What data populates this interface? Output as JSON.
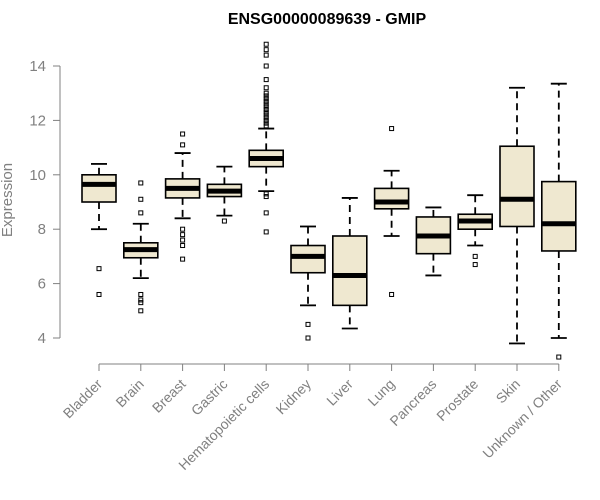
{
  "chart_data": {
    "type": "box",
    "title": "ENSG00000089639 - GMIP",
    "xlabel": "",
    "ylabel": "Expression",
    "ylim": [
      3.0,
      15.0
    ],
    "yticks": [
      4,
      6,
      8,
      10,
      12,
      14
    ],
    "colors": {
      "box_fill": "#efe8d0",
      "stroke": "#000000",
      "axis": "#808080",
      "label": "#808080",
      "title": "#000000"
    },
    "categories": [
      "Bladder",
      "Brain",
      "Breast",
      "Gastric",
      "Hematopoietic cells",
      "Kidney",
      "Liver",
      "Lung",
      "Pancreas",
      "Prostate",
      "Skin",
      "Unknown / Other"
    ],
    "boxes": [
      {
        "name": "Bladder",
        "whisker_low": 8.0,
        "q1": 9.0,
        "median": 9.65,
        "q3": 10.0,
        "whisker_high": 10.4,
        "outliers": [
          6.55,
          5.6
        ]
      },
      {
        "name": "Brain",
        "whisker_low": 6.2,
        "q1": 6.95,
        "median": 7.25,
        "q3": 7.5,
        "whisker_high": 8.2,
        "outliers": [
          9.7,
          9.1,
          8.6,
          5.6,
          5.4,
          5.3,
          5.0
        ]
      },
      {
        "name": "Breast",
        "whisker_low": 8.4,
        "q1": 9.15,
        "median": 9.5,
        "q3": 9.85,
        "whisker_high": 10.8,
        "outliers": [
          11.5,
          11.1,
          8.0,
          7.8,
          7.6,
          7.4,
          6.9
        ]
      },
      {
        "name": "Gastric",
        "whisker_low": 8.5,
        "q1": 9.2,
        "median": 9.4,
        "q3": 9.65,
        "whisker_high": 10.3,
        "outliers": [
          8.3
        ]
      },
      {
        "name": "Hematopoietic cells",
        "whisker_low": 9.4,
        "q1": 10.3,
        "median": 10.6,
        "q3": 10.9,
        "whisker_high": 11.7,
        "outliers": [
          14.8,
          14.6,
          14.4,
          14.0,
          13.5,
          13.2,
          13.0,
          12.9,
          12.8,
          12.7,
          12.6,
          12.5,
          12.4,
          12.3,
          12.2,
          12.1,
          12.0,
          11.9,
          11.8,
          9.3,
          9.2,
          8.6,
          7.9
        ]
      },
      {
        "name": "Kidney",
        "whisker_low": 5.2,
        "q1": 6.4,
        "median": 7.0,
        "q3": 7.4,
        "whisker_high": 8.1,
        "outliers": [
          4.5,
          4.0
        ]
      },
      {
        "name": "Liver",
        "whisker_low": 4.35,
        "q1": 5.2,
        "median": 6.3,
        "q3": 7.75,
        "whisker_high": 9.15,
        "outliers": []
      },
      {
        "name": "Lung",
        "whisker_low": 7.75,
        "q1": 8.75,
        "median": 9.0,
        "q3": 9.5,
        "whisker_high": 10.15,
        "outliers": [
          11.7,
          5.6
        ]
      },
      {
        "name": "Pancreas",
        "whisker_low": 6.3,
        "q1": 7.1,
        "median": 7.75,
        "q3": 8.45,
        "whisker_high": 8.8,
        "outliers": []
      },
      {
        "name": "Prostate",
        "whisker_low": 7.4,
        "q1": 8.0,
        "median": 8.3,
        "q3": 8.55,
        "whisker_high": 9.25,
        "outliers": [
          7.0,
          6.7
        ]
      },
      {
        "name": "Skin",
        "whisker_low": 3.8,
        "q1": 8.1,
        "median": 9.1,
        "q3": 11.05,
        "whisker_high": 13.2,
        "outliers": []
      },
      {
        "name": "Unknown / Other",
        "whisker_low": 4.0,
        "q1": 7.2,
        "median": 8.2,
        "q3": 9.75,
        "whisker_high": 13.35,
        "outliers": [
          3.3
        ]
      }
    ]
  }
}
